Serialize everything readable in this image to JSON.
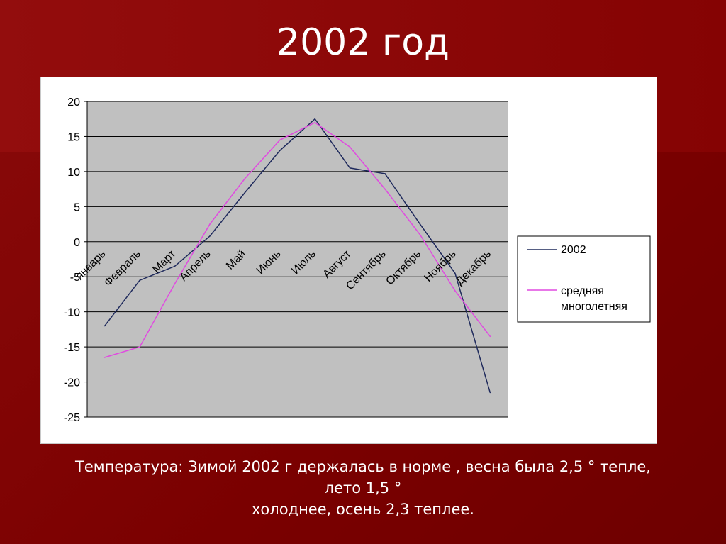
{
  "title": "2002 год",
  "caption": {
    "line1": "Температура: Зимой 2002 г держалась в норме , весна была 2,5 ° тепле,",
    "line2": "лето 1,5 °",
    "line3": "холоднее, осень 2,3 теплее."
  },
  "colors": {
    "background": "#7a0000",
    "plot_area": "#c0c0c0",
    "series_2002": "#1f2a5c",
    "series_avg": "#e04ae0"
  },
  "chart_data": {
    "type": "line",
    "categories": [
      "Январь",
      "Февраль",
      "Март",
      "Апрель",
      "Май",
      "Июнь",
      "Июль",
      "Август",
      "Сентябрь",
      "Октябрь",
      "Ноябрь",
      "Декабрь"
    ],
    "category_labels_display": [
      "январь",
      "Февраль",
      "Март",
      "Апрель",
      "Май",
      "Июнь",
      "Июль",
      "Август",
      "Сентябрь",
      "Октябрь",
      "Ноябрь",
      "Декабрь"
    ],
    "series": [
      {
        "name": "2002",
        "color": "#1f2a5c",
        "values": [
          -12,
          -5.5,
          -3.5,
          0.8,
          7,
          13,
          17.5,
          10.5,
          9.7,
          2.5,
          -4.5,
          -21.5
        ]
      },
      {
        "name": "средняя многолетняя",
        "color": "#e04ae0",
        "values": [
          -16.5,
          -15,
          -6,
          2.5,
          9,
          14.5,
          17,
          13.5,
          7.5,
          1,
          -7,
          -13.5
        ]
      }
    ],
    "yticks": [
      20,
      15,
      10,
      5,
      0,
      -5,
      -10,
      -15,
      -20,
      -25
    ],
    "ylim": [
      -25,
      20
    ],
    "grid": true,
    "legend_position": "right",
    "legend": [
      "2002",
      "средняя многолетняя"
    ]
  }
}
